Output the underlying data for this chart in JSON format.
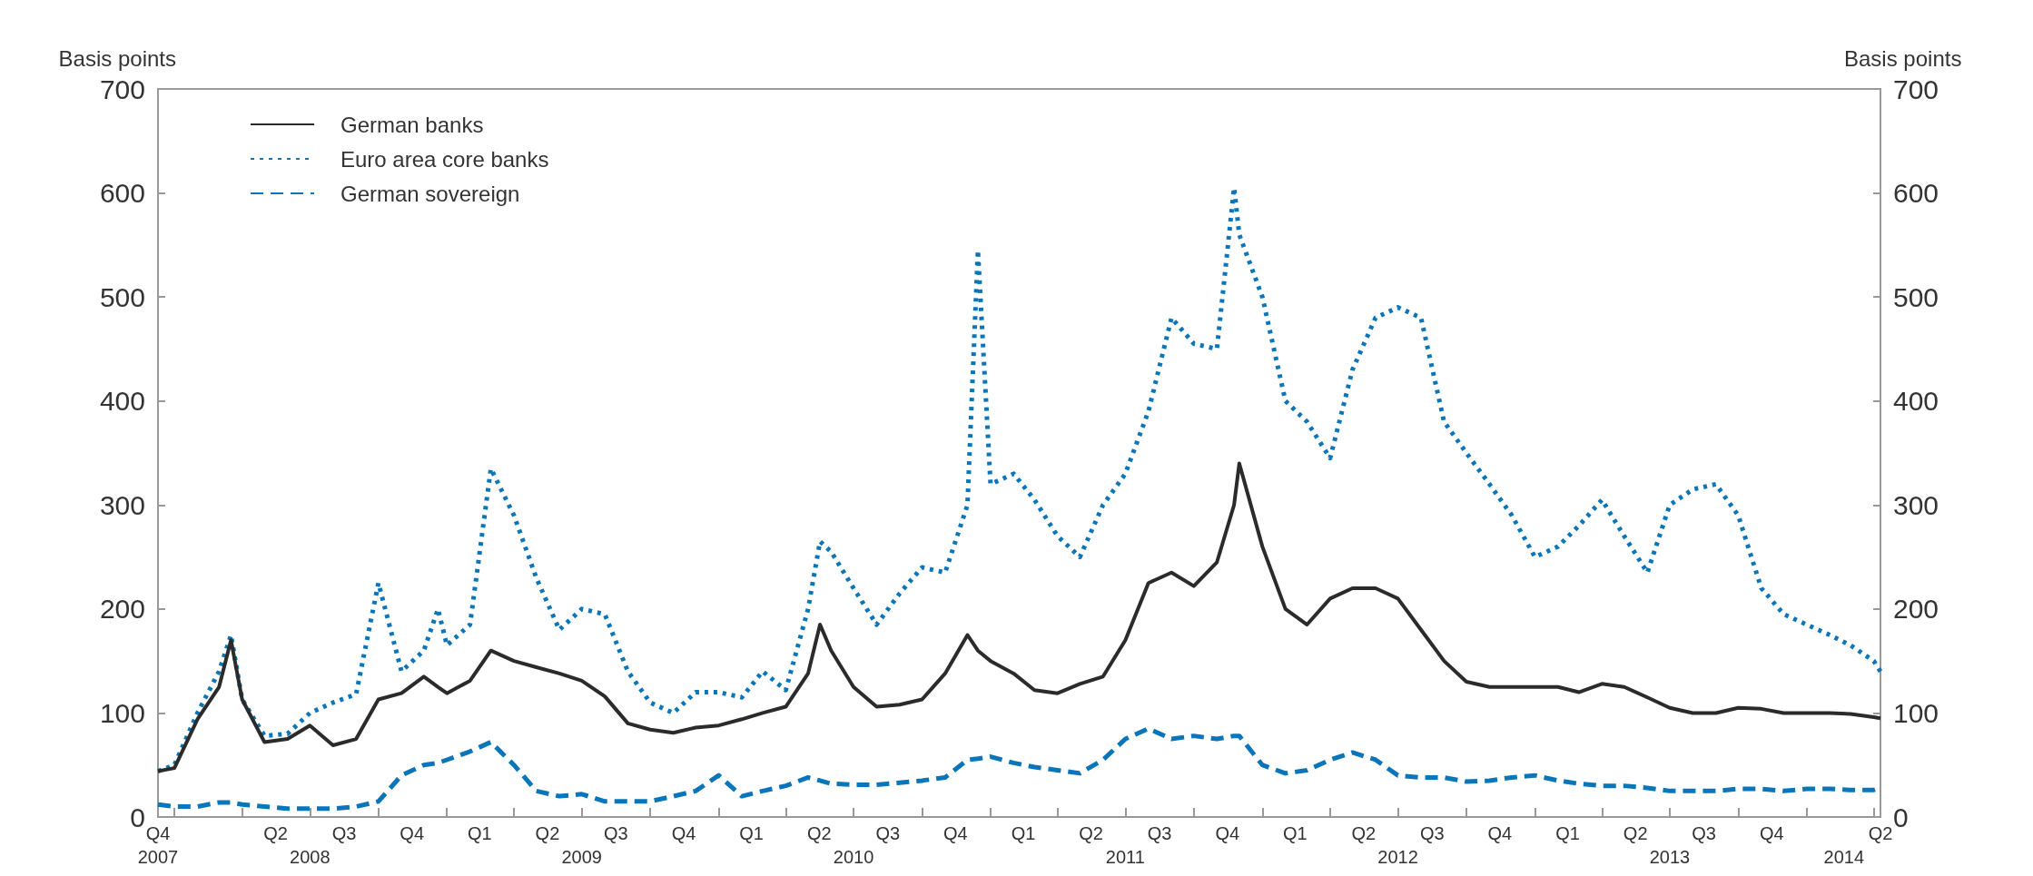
{
  "chart_data": {
    "type": "line",
    "ylabel": "Basis points",
    "y2label": "Basis points",
    "legend": "top left",
    "marker": "none",
    "xlim": [
      "2007-12-10",
      "2014-04-10"
    ],
    "xticks": [
      {
        "value": "2007-12-10",
        "label": "Q4"
      },
      {
        "value": "2008-01-01",
        "label": null
      },
      {
        "value": "2008-04-01",
        "label": null
      },
      {
        "value": "2008-05-16",
        "label": "Q2"
      },
      {
        "value": "2008-07-01",
        "label": null
      },
      {
        "value": "2008-08-16",
        "label": "Q3"
      },
      {
        "value": "2008-10-01",
        "label": null
      },
      {
        "value": "2008-11-15",
        "label": "Q4"
      },
      {
        "value": "2009-01-01",
        "label": null
      },
      {
        "value": "2009-02-14",
        "label": "Q1"
      },
      {
        "value": "2009-04-01",
        "label": null
      },
      {
        "value": "2009-05-16",
        "label": "Q2"
      },
      {
        "value": "2009-07-01",
        "label": null
      },
      {
        "value": "2009-08-16",
        "label": "Q3"
      },
      {
        "value": "2009-10-01",
        "label": null
      },
      {
        "value": "2009-11-15",
        "label": "Q4"
      },
      {
        "value": "2010-01-01",
        "label": null
      },
      {
        "value": "2010-02-14",
        "label": "Q1"
      },
      {
        "value": "2010-04-01",
        "label": null
      },
      {
        "value": "2010-05-16",
        "label": "Q2"
      },
      {
        "value": "2010-07-01",
        "label": null
      },
      {
        "value": "2010-08-16",
        "label": "Q3"
      },
      {
        "value": "2010-10-01",
        "label": null
      },
      {
        "value": "2010-11-15",
        "label": "Q4"
      },
      {
        "value": "2011-01-01",
        "label": null
      },
      {
        "value": "2011-02-14",
        "label": "Q1"
      },
      {
        "value": "2011-04-01",
        "label": null
      },
      {
        "value": "2011-05-16",
        "label": "Q2"
      },
      {
        "value": "2011-07-01",
        "label": null
      },
      {
        "value": "2011-08-16",
        "label": "Q3"
      },
      {
        "value": "2011-10-01",
        "label": null
      },
      {
        "value": "2011-11-15",
        "label": "Q4"
      },
      {
        "value": "2012-01-01",
        "label": null
      },
      {
        "value": "2012-02-14",
        "label": "Q1"
      },
      {
        "value": "2012-04-01",
        "label": null
      },
      {
        "value": "2012-05-16",
        "label": "Q2"
      },
      {
        "value": "2012-07-01",
        "label": null
      },
      {
        "value": "2012-08-16",
        "label": "Q3"
      },
      {
        "value": "2012-10-01",
        "label": null
      },
      {
        "value": "2012-11-15",
        "label": "Q4"
      },
      {
        "value": "2013-01-01",
        "label": null
      },
      {
        "value": "2013-02-14",
        "label": "Q1"
      },
      {
        "value": "2013-04-01",
        "label": null
      },
      {
        "value": "2013-05-16",
        "label": "Q2"
      },
      {
        "value": "2013-07-01",
        "label": null
      },
      {
        "value": "2013-08-16",
        "label": "Q3"
      },
      {
        "value": "2013-10-01",
        "label": null
      },
      {
        "value": "2013-11-15",
        "label": "Q4"
      },
      {
        "value": "2014-01-01",
        "label": null
      },
      {
        "value": "2014-04-01",
        "label": null
      },
      {
        "value": "2014-04-10",
        "label": "Q2"
      }
    ],
    "x2lim": [
      "2007-12-10",
      "2014-04-10"
    ],
    "x2ticks": [
      {
        "value": "2007-12-10",
        "label": "2007"
      },
      {
        "value": "2008-07-01",
        "label": "2008"
      },
      {
        "value": "2009-07-01",
        "label": "2009"
      },
      {
        "value": "2010-07-01",
        "label": "2010"
      },
      {
        "value": "2011-07-01",
        "label": "2011"
      },
      {
        "value": "2012-07-01",
        "label": "2012"
      },
      {
        "value": "2013-07-01",
        "label": "2013"
      },
      {
        "value": "2014-02-20",
        "label": "2014"
      }
    ],
    "ylim": [
      0,
      700
    ],
    "yticks": [
      0,
      100,
      200,
      300,
      400,
      500,
      600,
      700
    ],
    "y2lim": [
      0,
      700
    ],
    "y2ticks": [
      0,
      100,
      200,
      300,
      400,
      500,
      600,
      700
    ],
    "x": [
      "2007-12-10",
      "2008-01-01",
      "2008-02-01",
      "2008-03-01",
      "2008-03-17",
      "2008-04-01",
      "2008-05-01",
      "2008-06-01",
      "2008-07-01",
      "2008-08-01",
      "2008-09-01",
      "2008-10-01",
      "2008-11-01",
      "2008-12-01",
      "2008-12-20",
      "2009-01-01",
      "2009-02-01",
      "2009-03-01",
      "2009-04-01",
      "2009-05-01",
      "2009-06-01",
      "2009-07-01",
      "2009-08-01",
      "2009-09-01",
      "2009-10-01",
      "2009-11-01",
      "2009-12-01",
      "2010-01-01",
      "2010-02-01",
      "2010-03-01",
      "2010-04-01",
      "2010-05-01",
      "2010-05-17",
      "2010-06-01",
      "2010-07-01",
      "2010-08-01",
      "2010-09-01",
      "2010-10-01",
      "2010-11-01",
      "2010-12-01",
      "2010-12-15",
      "2011-01-01",
      "2011-02-01",
      "2011-03-01",
      "2011-04-01",
      "2011-05-01",
      "2011-06-01",
      "2011-07-01",
      "2011-08-01",
      "2011-09-01",
      "2011-10-01",
      "2011-11-01",
      "2011-11-24",
      "2011-12-01",
      "2012-01-01",
      "2012-02-01",
      "2012-03-01",
      "2012-04-01",
      "2012-05-01",
      "2012-06-01",
      "2012-07-01",
      "2012-08-01",
      "2012-09-01",
      "2012-10-01",
      "2012-11-01",
      "2012-12-01",
      "2013-01-01",
      "2013-02-01",
      "2013-03-01",
      "2013-04-01",
      "2013-05-01",
      "2013-06-01",
      "2013-07-01",
      "2013-08-01",
      "2013-09-01",
      "2013-10-01",
      "2013-11-01",
      "2013-12-01",
      "2014-01-01",
      "2014-02-01",
      "2014-03-01",
      "2014-04-01",
      "2014-04-10"
    ],
    "series": [
      {
        "name": "German banks",
        "color": "#2b2b2b",
        "line_style": "solid",
        "values": [
          44,
          47,
          94,
          125,
          170,
          113,
          72,
          75,
          88,
          69,
          75,
          113,
          119,
          135,
          125,
          119,
          131,
          160,
          150,
          144,
          138,
          131,
          116,
          90,
          84,
          81,
          86,
          88,
          94,
          100,
          106,
          138,
          185,
          160,
          125,
          106,
          108,
          113,
          138,
          175,
          160,
          150,
          138,
          122,
          119,
          128,
          135,
          170,
          225,
          235,
          222,
          245,
          300,
          340,
          260,
          200,
          185,
          210,
          220,
          220,
          210,
          180,
          150,
          130,
          125,
          125,
          125,
          125,
          120,
          128,
          125,
          115,
          105,
          100,
          100,
          105,
          104,
          100,
          100,
          100,
          99,
          96,
          95
        ]
      },
      {
        "name": "Euro area core banks",
        "color": "#0a75b9",
        "line_style": "dotted",
        "values": [
          44,
          50,
          100,
          140,
          175,
          113,
          78,
          80,
          100,
          110,
          118,
          225,
          140,
          160,
          200,
          165,
          185,
          335,
          290,
          230,
          180,
          200,
          195,
          140,
          110,
          100,
          120,
          120,
          115,
          140,
          122,
          200,
          265,
          255,
          220,
          185,
          215,
          240,
          235,
          300,
          545,
          320,
          330,
          305,
          270,
          250,
          300,
          330,
          390,
          480,
          455,
          450,
          605,
          560,
          500,
          400,
          380,
          345,
          430,
          480,
          490,
          480,
          380,
          350,
          320,
          290,
          250,
          260,
          280,
          305,
          270,
          235,
          300,
          315,
          320,
          290,
          220,
          195,
          185,
          175,
          165,
          150,
          140
        ]
      },
      {
        "name": "German sovereign",
        "color": "#0a75b9",
        "line_style": "dashed",
        "values": [
          12,
          10,
          10,
          14,
          14,
          12,
          10,
          8,
          8,
          8,
          10,
          15,
          40,
          50,
          52,
          55,
          63,
          72,
          50,
          25,
          20,
          22,
          15,
          15,
          15,
          20,
          25,
          40,
          20,
          25,
          30,
          38,
          35,
          32,
          31,
          31,
          33,
          35,
          38,
          55,
          56,
          58,
          52,
          48,
          45,
          42,
          55,
          75,
          85,
          75,
          78,
          75,
          78,
          78,
          50,
          42,
          45,
          55,
          62,
          55,
          40,
          38,
          38,
          34,
          35,
          38,
          40,
          35,
          32,
          30,
          30,
          28,
          25,
          25,
          25,
          27,
          27,
          25,
          27,
          27,
          26,
          26,
          28
        ]
      }
    ]
  }
}
